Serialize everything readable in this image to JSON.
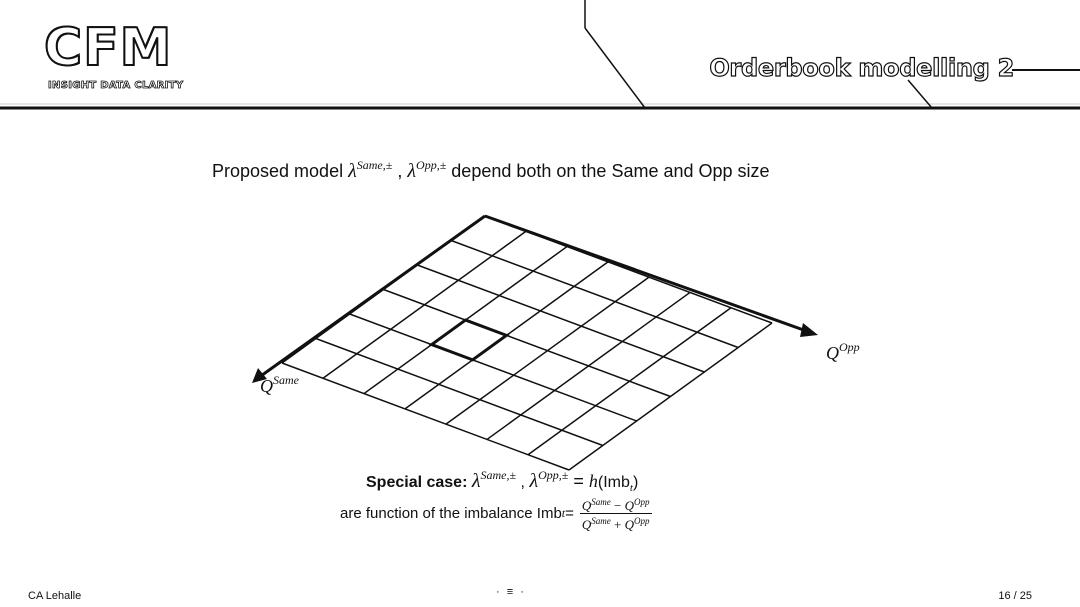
{
  "header": {
    "logo_text": "CFM",
    "logo_tagline": "INSIGHT DATA CLARITY",
    "title": "Orderbook modelling 2"
  },
  "intro": {
    "prefix": "Proposed model ",
    "lambda": "λ",
    "sup_same": "Same,±",
    "comma": " , ",
    "sup_opp": "Opp,±",
    "suffix": " depend both on the Same and Opp size"
  },
  "diagram": {
    "axis_same_label": "Q",
    "axis_same_sup": "Same",
    "axis_opp_label": "Q",
    "axis_opp_sup": "Opp"
  },
  "special_case": {
    "label": "Special case: ",
    "lambda": "λ",
    "sup_same": "Same,±",
    "comma": " , ",
    "sup_opp": "Opp,±",
    "equals": " = ",
    "h": "h",
    "imb": "(Imb",
    "sub_t": "t",
    "close": ")"
  },
  "function_line": {
    "text": "are function of the imbalance Imb",
    "sub_t": "t",
    "equals": " = ",
    "num_a": "Q",
    "num_a_sup": "Same",
    "num_op": " − ",
    "num_b": "Q",
    "num_b_sup": "Opp",
    "den_a": "Q",
    "den_a_sup": "Same",
    "den_op": " + ",
    "den_b": "Q",
    "den_b_sup": "Opp"
  },
  "footer": {
    "author": "CA Lehalle",
    "nav": "· ≡ ·",
    "page": "16 / 25"
  }
}
